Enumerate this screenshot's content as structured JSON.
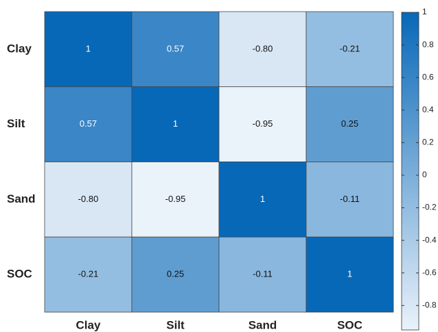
{
  "chart_data": {
    "type": "heatmap",
    "x_categories": [
      "Clay",
      "Silt",
      "Sand",
      "SOC"
    ],
    "y_categories": [
      "Clay",
      "Silt",
      "Sand",
      "SOC"
    ],
    "values": [
      [
        1,
        0.57,
        -0.8,
        -0.21
      ],
      [
        0.57,
        1,
        -0.95,
        0.25
      ],
      [
        -0.8,
        -0.95,
        1,
        -0.11
      ],
      [
        -0.21,
        0.25,
        -0.11,
        1
      ]
    ],
    "value_labels": [
      [
        "1",
        "0.57",
        "-0.80",
        "-0.21"
      ],
      [
        "0.57",
        "1",
        "-0.95",
        "0.25"
      ],
      [
        "-0.80",
        "-0.95",
        "1",
        "-0.11"
      ],
      [
        "-0.21",
        "0.25",
        "-0.11",
        "1"
      ]
    ],
    "colors": [
      "#eaf2fa",
      "#0868b8"
    ],
    "clim": [
      -0.95,
      1
    ],
    "cticks": [
      -0.8,
      -0.6,
      -0.4,
      -0.2,
      0,
      0.2,
      0.4,
      0.6,
      0.8,
      1
    ]
  }
}
